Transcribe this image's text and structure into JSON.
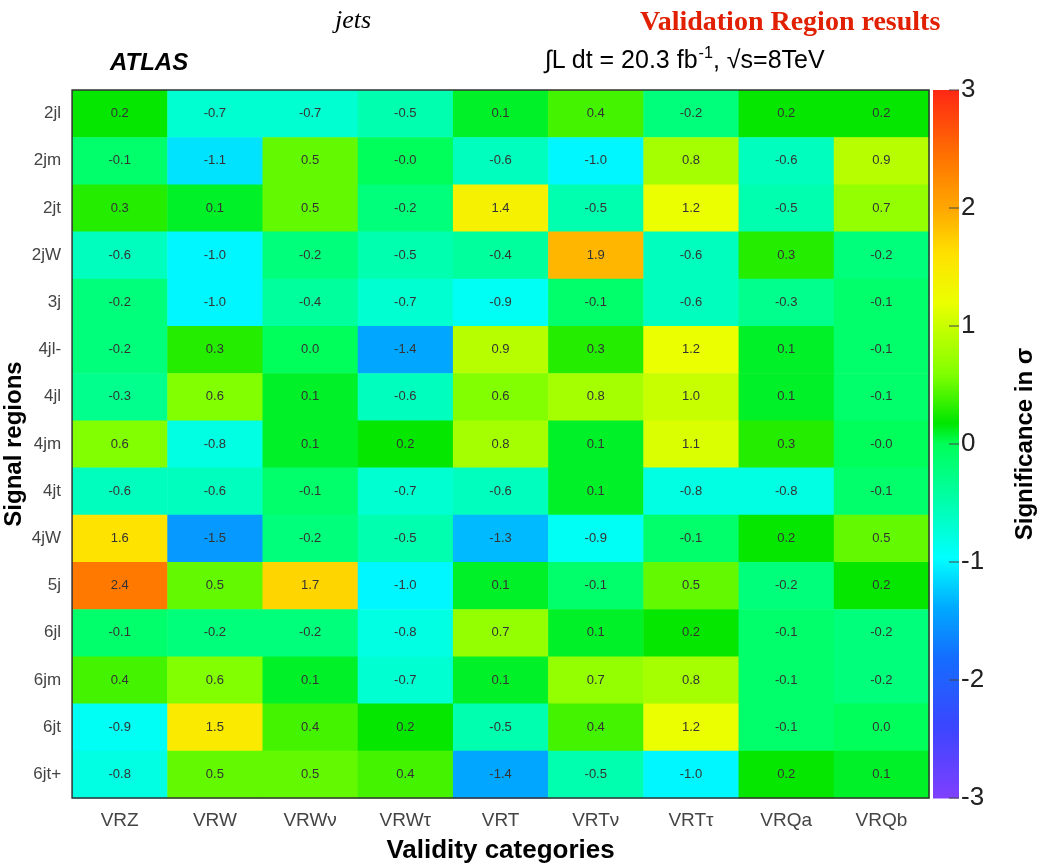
{
  "chart_data": {
    "type": "heatmap",
    "title": "ATLAS",
    "subtitle": "∫L dt = 20.3 fb$^{-1}$, √s=8TeV",
    "xlabel": "Validity categories",
    "ylabel": "Signal regions",
    "clabel": "Significance in σ",
    "annotations": [
      "jets",
      "Validation Region results"
    ],
    "categories": [
      "VRZ",
      "VRW",
      "VRWν",
      "VRWτ",
      "VRT",
      "VRTν",
      "VRTτ",
      "VRQa",
      "VRQb"
    ],
    "y_categories": [
      "2jl",
      "2jm",
      "2jt",
      "2jW",
      "3j",
      "4jl-",
      "4jl",
      "4jm",
      "4jt",
      "4jW",
      "5j",
      "6jl",
      "6jm",
      "6jt",
      "6jt+"
    ],
    "cells": [
      [
        0.2,
        -0.7,
        -0.7,
        -0.5,
        0.1,
        0.4,
        -0.2,
        0.2,
        0.2
      ],
      [
        -0.1,
        -1.1,
        0.5,
        -0.0,
        -0.6,
        -1.0,
        0.8,
        -0.6,
        0.9
      ],
      [
        0.3,
        0.1,
        0.5,
        -0.2,
        1.4,
        -0.5,
        1.2,
        -0.5,
        0.7
      ],
      [
        -0.6,
        -1.0,
        -0.2,
        -0.5,
        -0.4,
        1.9,
        -0.6,
        0.3,
        -0.2
      ],
      [
        -0.2,
        -1.0,
        -0.4,
        -0.7,
        -0.9,
        -0.1,
        -0.6,
        -0.3,
        -0.1
      ],
      [
        -0.2,
        0.3,
        0.0,
        -1.4,
        0.9,
        0.3,
        1.2,
        0.1,
        -0.1
      ],
      [
        -0.3,
        0.6,
        0.1,
        -0.6,
        0.6,
        0.8,
        1.0,
        0.1,
        -0.1
      ],
      [
        0.6,
        -0.8,
        0.1,
        0.2,
        0.8,
        0.1,
        1.1,
        0.3,
        -0.0
      ],
      [
        -0.6,
        -0.6,
        -0.1,
        -0.7,
        -0.6,
        0.1,
        -0.8,
        -0.8,
        -0.1
      ],
      [
        1.6,
        -1.5,
        -0.2,
        -0.5,
        -1.3,
        -0.9,
        -0.1,
        0.2,
        0.5
      ],
      [
        2.4,
        0.5,
        1.7,
        -1.0,
        0.1,
        -0.1,
        0.5,
        -0.2,
        0.2
      ],
      [
        -0.1,
        -0.2,
        -0.2,
        -0.8,
        0.7,
        0.1,
        0.2,
        -0.1,
        -0.2
      ],
      [
        0.4,
        0.6,
        0.1,
        -0.7,
        0.1,
        0.7,
        0.8,
        -0.1,
        -0.2
      ],
      [
        -0.9,
        1.5,
        0.4,
        0.2,
        -0.5,
        0.4,
        1.2,
        -0.1,
        0.0
      ],
      [
        -0.8,
        0.5,
        0.5,
        0.4,
        -1.4,
        -0.5,
        -1.0,
        0.2,
        0.1
      ]
    ],
    "cell_labels": [
      [
        "0.2",
        "-0.7",
        "-0.7",
        "-0.5",
        "0.1",
        "0.4",
        "-0.2",
        "0.2",
        "0.2"
      ],
      [
        "-0.1",
        "-1.1",
        "0.5",
        "-0.0",
        "-0.6",
        "-1.0",
        "0.8",
        "-0.6",
        "0.9"
      ],
      [
        "0.3",
        "0.1",
        "0.5",
        "-0.2",
        "1.4",
        "-0.5",
        "1.2",
        "-0.5",
        "0.7"
      ],
      [
        "-0.6",
        "-1.0",
        "-0.2",
        "-0.5",
        "-0.4",
        "1.9",
        "-0.6",
        "0.3",
        "-0.2"
      ],
      [
        "-0.2",
        "-1.0",
        "-0.4",
        "-0.7",
        "-0.9",
        "-0.1",
        "-0.6",
        "-0.3",
        "-0.1"
      ],
      [
        "-0.2",
        "0.3",
        "0.0",
        "-1.4",
        "0.9",
        "0.3",
        "1.2",
        "0.1",
        "-0.1"
      ],
      [
        "-0.3",
        "0.6",
        "0.1",
        "-0.6",
        "0.6",
        "0.8",
        "1.0",
        "0.1",
        "-0.1"
      ],
      [
        "0.6",
        "-0.8",
        "0.1",
        "0.2",
        "0.8",
        "0.1",
        "1.1",
        "0.3",
        "-0.0"
      ],
      [
        "-0.6",
        "-0.6",
        "-0.1",
        "-0.7",
        "-0.6",
        "0.1",
        "-0.8",
        "-0.8",
        "-0.1"
      ],
      [
        "1.6",
        "-1.5",
        "-0.2",
        "-0.5",
        "-1.3",
        "-0.9",
        "-0.1",
        "0.2",
        "0.5"
      ],
      [
        "2.4",
        "0.5",
        "1.7",
        "-1.0",
        "0.1",
        "-0.1",
        "0.5",
        "-0.2",
        "0.2"
      ],
      [
        "-0.1",
        "-0.2",
        "-0.2",
        "-0.8",
        "0.7",
        "0.1",
        "0.2",
        "-0.1",
        "-0.2"
      ],
      [
        "0.4",
        "0.6",
        "0.1",
        "-0.7",
        "0.1",
        "0.7",
        "0.8",
        "-0.1",
        "-0.2"
      ],
      [
        "-0.9",
        "1.5",
        "0.4",
        "0.2",
        "-0.5",
        "0.4",
        "1.2",
        "-0.1",
        "0.0"
      ],
      [
        "-0.8",
        "0.5",
        "0.5",
        "0.4",
        "-1.4",
        "-0.5",
        "-1.0",
        "0.2",
        "0.1"
      ]
    ],
    "clim": [
      -3,
      3
    ],
    "cticks": [
      -3,
      -2,
      -1,
      0,
      1,
      2,
      3
    ]
  }
}
